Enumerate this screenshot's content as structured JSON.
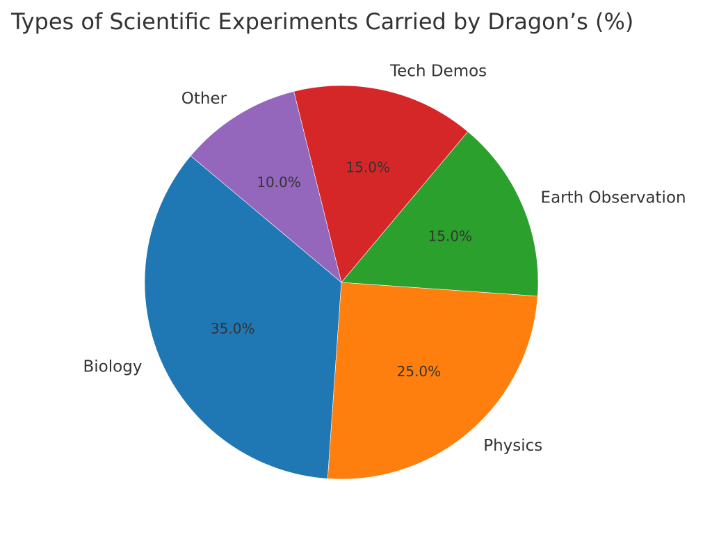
{
  "chart_data": {
    "type": "pie",
    "title": "Types of Scientific Experiments Carried by Dragon’s (%)",
    "start_angle_deg": 140,
    "direction": "counterclockwise",
    "slices": [
      {
        "label": "Biology",
        "value": 35.0,
        "pct_label": "35.0%",
        "color": "#1f77b4"
      },
      {
        "label": "Physics",
        "value": 25.0,
        "pct_label": "25.0%",
        "color": "#ff7f0e"
      },
      {
        "label": "Earth Observation",
        "value": 15.0,
        "pct_label": "15.0%",
        "color": "#2ca02c"
      },
      {
        "label": "Tech Demos",
        "value": 15.0,
        "pct_label": "15.0%",
        "color": "#d62728"
      },
      {
        "label": "Other",
        "value": 10.0,
        "pct_label": "10.0%",
        "color": "#9467bd"
      }
    ]
  }
}
